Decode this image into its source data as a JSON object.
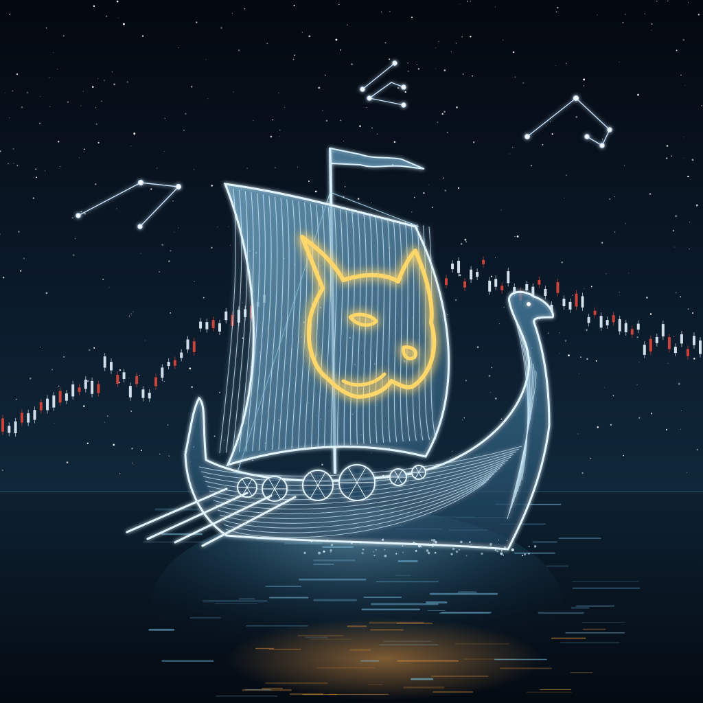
{
  "scene": {
    "subject": "longship",
    "sail_emblem": "dog-head-icon",
    "background": "starry-night-sky",
    "water": "calm-sea-reflection"
  },
  "colors": {
    "sky_top": "#050912",
    "sky_horizon": "#0e2233",
    "sea": "#07131f",
    "ship_glow": "#9fd9f5",
    "ship_line": "#d7f1ff",
    "emblem_glow": "#ffd66b",
    "emblem_core": "#fff4c8",
    "candle_up": "#e8f4ff",
    "candle_down": "#e0483c",
    "star": "#ffffff",
    "reflection_warm": "#d08a3a"
  },
  "candles": {
    "trend": [
      0.28,
      0.31,
      0.34,
      0.36,
      0.38,
      0.41,
      0.45,
      0.52,
      0.49,
      0.44,
      0.42,
      0.47,
      0.55,
      0.62,
      0.66,
      0.7,
      0.72,
      0.74,
      0.76,
      0.78,
      0.8,
      0.84,
      0.86,
      0.88,
      0.87,
      0.85,
      0.82,
      0.79,
      0.74,
      0.7,
      0.66,
      0.63,
      0.6
    ],
    "down_every": 3
  }
}
